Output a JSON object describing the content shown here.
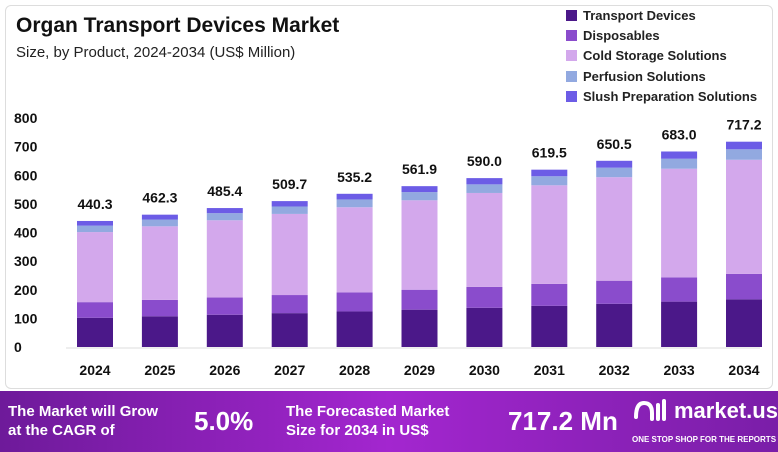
{
  "chart_data": {
    "type": "bar",
    "stacked": true,
    "title": "Organ Transport Devices Market",
    "subtitle": "Size, by Product, 2024-2034 (US$ Million)",
    "categories": [
      "2024",
      "2025",
      "2026",
      "2027",
      "2028",
      "2029",
      "2030",
      "2031",
      "2032",
      "2033",
      "2034"
    ],
    "totals": [
      "440.3",
      "462.3",
      "485.4",
      "509.7",
      "535.2",
      "561.9",
      "590.0",
      "619.5",
      "650.5",
      "683.0",
      "717.2"
    ],
    "yticks": [
      "0",
      "100",
      "200",
      "300",
      "400",
      "500",
      "600",
      "700",
      "800"
    ],
    "ylim": [
      0,
      800
    ],
    "grid": false,
    "legend_position": "top-right",
    "series": [
      {
        "name": "Transport Devices",
        "color": "#4b1889",
        "values": [
          102.1,
          107.3,
          112.6,
          118.3,
          124.2,
          130.4,
          136.9,
          143.7,
          150.9,
          158.5,
          166.4
        ]
      },
      {
        "name": "Disposables",
        "color": "#8a4ccc",
        "values": [
          54.6,
          57.3,
          60.2,
          63.2,
          66.4,
          69.7,
          73.2,
          76.8,
          80.7,
          84.7,
          88.9
        ]
      },
      {
        "name": "Cold Storage Solutions",
        "color": "#d3a8ec",
        "values": [
          244.8,
          257.0,
          269.9,
          283.4,
          297.6,
          312.4,
          328.0,
          344.4,
          361.7,
          379.7,
          398.8
        ]
      },
      {
        "name": "Perfusion Solutions",
        "color": "#92a9e0",
        "values": [
          22.5,
          23.6,
          24.8,
          26.0,
          27.3,
          28.7,
          30.1,
          31.6,
          33.2,
          34.8,
          36.6
        ]
      },
      {
        "name": "Slush Preparation Solutions",
        "color": "#6c5ce6",
        "values": [
          16.3,
          17.1,
          17.9,
          18.8,
          19.7,
          20.7,
          21.8,
          23.0,
          24.0,
          25.3,
          26.5
        ]
      }
    ]
  },
  "banner": {
    "cagr_label_1": "The Market will Grow",
    "cagr_label_2": "at the CAGR of",
    "cagr_value": "5.0%",
    "forecast_label_1": "The Forecasted Market",
    "forecast_label_2": "Size for 2034 in US$",
    "forecast_value": "717.2 Mn",
    "logo": "market.us",
    "logo_tagline": "ONE STOP SHOP FOR THE REPORTS"
  }
}
